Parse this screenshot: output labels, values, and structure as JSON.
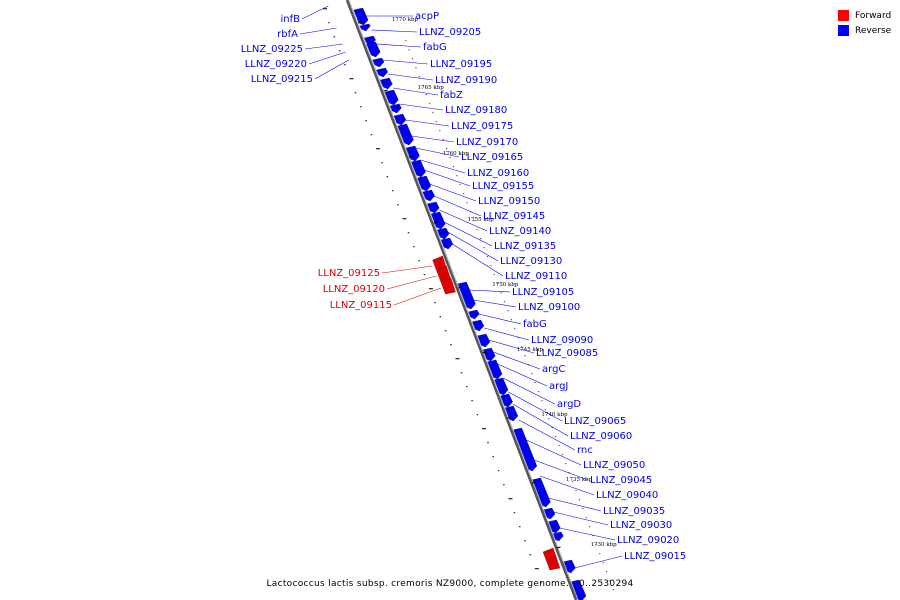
{
  "footer": "Lactococcus lactis subsp. cremoris NZ9000, complete genome. - 0..2530294",
  "legend": [
    {
      "label": "Forward",
      "color": "#ff0000"
    },
    {
      "label": "Reverse",
      "color": "#0000ff"
    }
  ],
  "colors": {
    "forward": "#dd0000",
    "reverse": "#0000ee",
    "backbone": "#888888"
  },
  "ticks": [
    "1770 kbp",
    "1765 kbp",
    "1760 kbp",
    "1755 kbp",
    "1750 kbp",
    "1745 kbp",
    "1740 kbp",
    "1735 kbp",
    "1730 kbp"
  ],
  "genes_reverse": [
    "infB",
    "rbfA",
    "LLNZ_09225",
    "LLNZ_09220",
    "LLNZ_09215",
    "acpP",
    "LLNZ_09205",
    "fabG",
    "LLNZ_09195",
    "LLNZ_09190",
    "fabZ",
    "LLNZ_09180",
    "LLNZ_09175",
    "LLNZ_09170",
    "LLNZ_09165",
    "LLNZ_09160",
    "LLNZ_09155",
    "LLNZ_09150",
    "LLNZ_09145",
    "LLNZ_09140",
    "LLNZ_09135",
    "LLNZ_09130",
    "LLNZ_09110",
    "LLNZ_09105",
    "LLNZ_09100",
    "fabG",
    "LLNZ_09090",
    "LLNZ_09085",
    "argC",
    "argJ",
    "argD",
    "LLNZ_09065",
    "LLNZ_09060",
    "rnc",
    "LLNZ_09050",
    "LLNZ_09045",
    "LLNZ_09040",
    "LLNZ_09035",
    "LLNZ_09030",
    "LLNZ_09020",
    "LLNZ_09015"
  ],
  "genes_forward": [
    "LLNZ_09125",
    "LLNZ_09120",
    "LLNZ_09115"
  ]
}
